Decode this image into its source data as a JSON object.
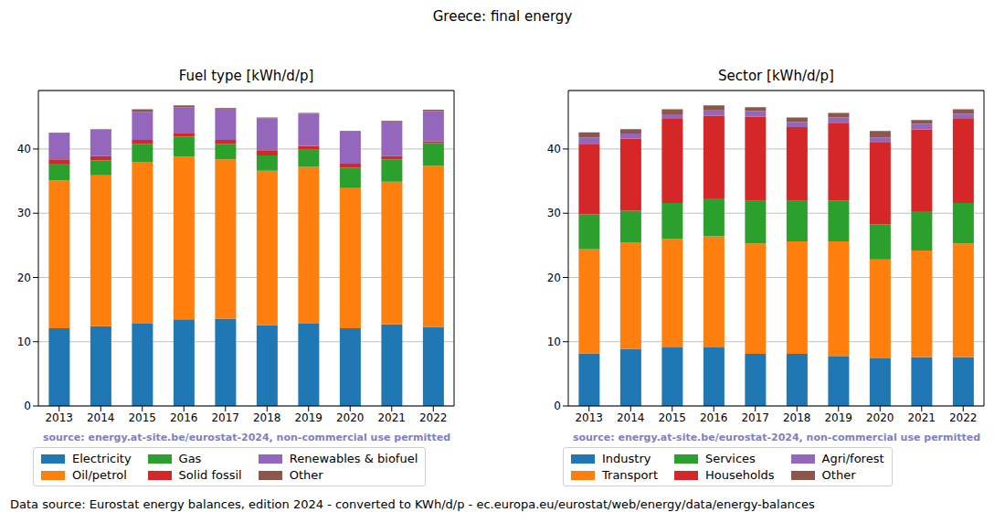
{
  "title": "Greece: final energy",
  "footer": "Data source: Eurostat energy balances, edition 2024 - converted to KWh/d/p - ec.europa.eu/eurostat/web/energy/data/energy-balances",
  "chart_data": [
    {
      "type": "bar",
      "title": "Fuel type [kWh/d/p]",
      "subtitle": "source: energy.at-site.be/eurostat-2024, non-commercial use permitted",
      "stacked": true,
      "grid": true,
      "legend": "bottom",
      "categories": [
        "2013",
        "2014",
        "2015",
        "2016",
        "2017",
        "2018",
        "2019",
        "2020",
        "2021",
        "2022"
      ],
      "ylim": [
        0,
        49.1
      ],
      "yticks": [
        0,
        10,
        20,
        30,
        40
      ],
      "series": [
        {
          "name": "Electricity",
          "color": "#1f77b4",
          "values": [
            12.1,
            12.4,
            12.8,
            13.5,
            13.6,
            12.6,
            12.8,
            12.1,
            12.7,
            12.3
          ]
        },
        {
          "name": "Oil/petrol",
          "color": "#ff7f0e",
          "values": [
            23.0,
            23.5,
            25.2,
            25.3,
            24.8,
            24.0,
            24.4,
            21.8,
            22.2,
            25.1
          ]
        },
        {
          "name": "Gas",
          "color": "#2ca02c",
          "values": [
            2.6,
            2.3,
            2.8,
            3.1,
            2.4,
            2.4,
            2.7,
            3.2,
            3.5,
            3.5
          ]
        },
        {
          "name": "Solid fossil",
          "color": "#d62728",
          "values": [
            0.7,
            0.7,
            0.6,
            0.6,
            0.6,
            0.8,
            0.6,
            0.6,
            0.5,
            0.3
          ]
        },
        {
          "name": "Renewables & biofuel",
          "color": "#9467bd",
          "values": [
            4.0,
            4.1,
            4.4,
            4.0,
            4.9,
            5.0,
            5.0,
            5.0,
            5.4,
            4.7
          ]
        },
        {
          "name": "Other",
          "color": "#8c564b",
          "values": [
            0.1,
            0.1,
            0.4,
            0.3,
            0.1,
            0.1,
            0.1,
            0.1,
            0.1,
            0.2
          ]
        }
      ]
    },
    {
      "type": "bar",
      "title": "Sector [kWh/d/p]",
      "subtitle": "source: energy.at-site.be/eurostat-2024, non-commercial use permitted",
      "stacked": true,
      "grid": true,
      "legend": "bottom",
      "categories": [
        "2013",
        "2014",
        "2015",
        "2016",
        "2017",
        "2018",
        "2019",
        "2020",
        "2021",
        "2022"
      ],
      "ylim": [
        0,
        49.1
      ],
      "yticks": [
        0,
        10,
        20,
        30,
        40
      ],
      "series": [
        {
          "name": "Industry",
          "color": "#1f77b4",
          "values": [
            8.2,
            8.9,
            9.1,
            9.1,
            8.1,
            8.1,
            7.7,
            7.4,
            7.6,
            7.6
          ]
        },
        {
          "name": "Transport",
          "color": "#ff7f0e",
          "values": [
            16.2,
            16.5,
            16.9,
            17.3,
            17.2,
            17.5,
            17.9,
            15.4,
            16.6,
            17.7
          ]
        },
        {
          "name": "Services",
          "color": "#2ca02c",
          "values": [
            5.4,
            5.0,
            5.6,
            5.9,
            6.6,
            6.3,
            6.4,
            5.5,
            6.1,
            6.3
          ]
        },
        {
          "name": "Households",
          "color": "#d62728",
          "values": [
            11.0,
            11.2,
            13.1,
            12.9,
            13.1,
            11.5,
            12.1,
            12.7,
            12.7,
            13.2
          ]
        },
        {
          "name": "Agri/forest",
          "color": "#9467bd",
          "values": [
            1.0,
            0.8,
            0.7,
            0.8,
            0.9,
            0.8,
            0.8,
            0.8,
            0.9,
            0.7
          ]
        },
        {
          "name": "Other",
          "color": "#8c564b",
          "values": [
            0.8,
            0.7,
            0.8,
            0.8,
            0.6,
            0.7,
            0.7,
            1.0,
            0.6,
            0.7
          ]
        }
      ]
    }
  ]
}
